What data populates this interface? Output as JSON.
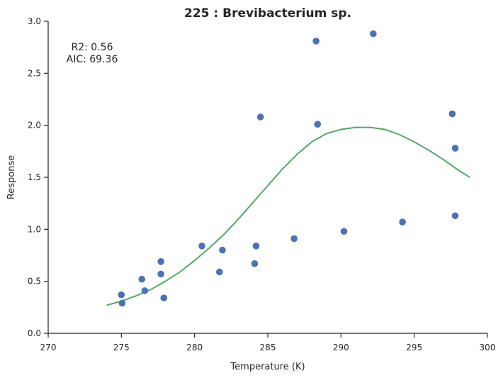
{
  "chart_data": {
    "type": "scatter",
    "title": "225 : Brevibacterium sp.",
    "xlabel": "Temperature (K)",
    "ylabel": "Response",
    "xlim": [
      270,
      300
    ],
    "ylim": [
      0.0,
      3.0
    ],
    "xticks": [
      270,
      275,
      280,
      285,
      290,
      295,
      300
    ],
    "yticks": [
      0.0,
      0.5,
      1.0,
      1.5,
      2.0,
      2.5,
      3.0
    ],
    "xtick_labels": [
      "270",
      "275",
      "280",
      "285",
      "290",
      "295",
      "300"
    ],
    "ytick_labels": [
      "0.0",
      "0.5",
      "1.0",
      "1.5",
      "2.0",
      "2.5",
      "3.0"
    ],
    "annotation": {
      "r2": "R2: 0.56",
      "aic": "AIC: 69.36"
    },
    "grid": false,
    "series": [
      {
        "kind": "points",
        "color": "#4c72b0",
        "points": [
          [
            275.0,
            0.37
          ],
          [
            275.05,
            0.29
          ],
          [
            276.4,
            0.52
          ],
          [
            276.6,
            0.41
          ],
          [
            277.7,
            0.69
          ],
          [
            277.7,
            0.57
          ],
          [
            277.9,
            0.34
          ],
          [
            280.5,
            0.84
          ],
          [
            281.7,
            0.59
          ],
          [
            281.9,
            0.8
          ],
          [
            284.1,
            0.67
          ],
          [
            284.2,
            0.84
          ],
          [
            284.5,
            2.08
          ],
          [
            286.8,
            0.91
          ],
          [
            288.3,
            2.81
          ],
          [
            288.4,
            2.01
          ],
          [
            290.2,
            0.98
          ],
          [
            292.2,
            2.88
          ],
          [
            294.2,
            1.07
          ],
          [
            297.6,
            2.11
          ],
          [
            297.8,
            1.78
          ],
          [
            297.8,
            1.13
          ]
        ]
      },
      {
        "kind": "curve",
        "color": "#55a868",
        "x": [
          274.0,
          275.0,
          276.0,
          277.0,
          278.0,
          279.0,
          280.0,
          281.0,
          282.0,
          283.0,
          284.0,
          285.0,
          286.0,
          287.0,
          288.0,
          289.0,
          290.0,
          291.0,
          292.0,
          293.0,
          294.0,
          295.0,
          296.0,
          297.0,
          298.0,
          298.8
        ],
        "y": [
          0.27,
          0.31,
          0.36,
          0.42,
          0.5,
          0.59,
          0.7,
          0.82,
          0.95,
          1.1,
          1.26,
          1.42,
          1.58,
          1.72,
          1.84,
          1.92,
          1.96,
          1.98,
          1.98,
          1.96,
          1.91,
          1.84,
          1.76,
          1.67,
          1.57,
          1.5
        ]
      }
    ]
  }
}
